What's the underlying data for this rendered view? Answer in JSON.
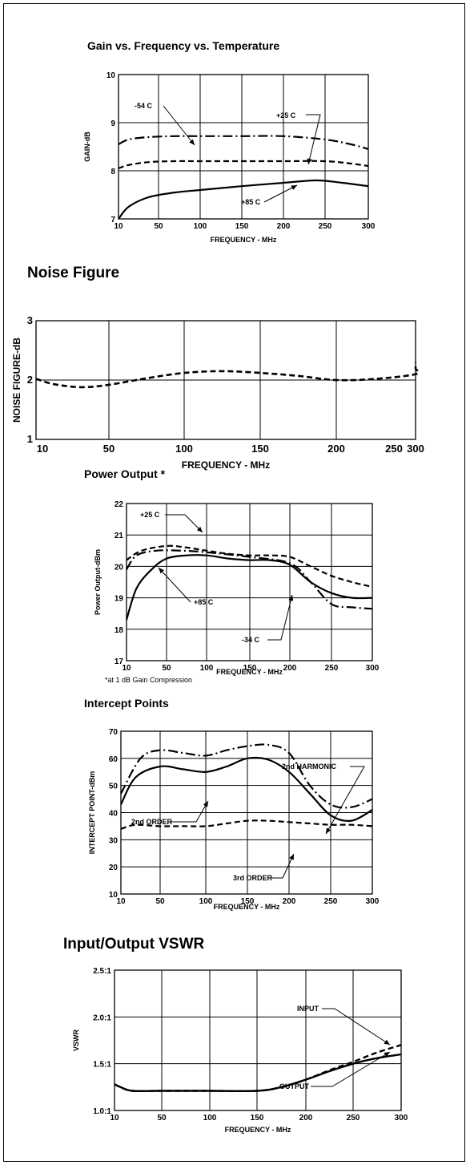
{
  "chart_data": [
    {
      "type": "line",
      "title": "Gain vs. Frequency vs. Temperature",
      "xlabel": "FREQUENCY - MHz",
      "ylabel": "GAIN-dB",
      "xticks": [
        "10",
        "50",
        "100",
        "150",
        "200",
        "250",
        "300"
      ],
      "yticks": [
        "7",
        "8",
        "9",
        "10"
      ],
      "xlim": [
        10,
        300
      ],
      "ylim": [
        7,
        10
      ],
      "grid": true,
      "series": [
        {
          "name": "-54 C",
          "style": "dash-dot",
          "x": [
            10,
            20,
            40,
            70,
            100,
            150,
            200,
            250,
            280,
            300
          ],
          "y": [
            8.55,
            8.65,
            8.7,
            8.72,
            8.72,
            8.72,
            8.72,
            8.65,
            8.55,
            8.45
          ]
        },
        {
          "name": "+25 C",
          "style": "dashed",
          "x": [
            10,
            20,
            40,
            70,
            100,
            150,
            200,
            250,
            280,
            300
          ],
          "y": [
            8.05,
            8.12,
            8.18,
            8.2,
            8.2,
            8.2,
            8.2,
            8.2,
            8.15,
            8.1
          ]
        },
        {
          "name": "+85 C",
          "style": "solid",
          "x": [
            10,
            20,
            40,
            70,
            100,
            150,
            200,
            240,
            270,
            300
          ],
          "y": [
            7.0,
            7.25,
            7.45,
            7.55,
            7.6,
            7.68,
            7.75,
            7.8,
            7.75,
            7.68
          ]
        }
      ],
      "annotations": [
        "-54 C",
        "+25 C",
        "+85 C"
      ]
    },
    {
      "type": "line",
      "title": "Noise Figure",
      "xlabel": "FREQUENCY - MHz",
      "ylabel": "NOISE FIGURE-dB",
      "xticks": [
        "10",
        "50",
        "100",
        "150",
        "200",
        "250",
        "300"
      ],
      "yticks": [
        "1",
        "2",
        "3"
      ],
      "xlim": [
        10,
        300
      ],
      "ylim": [
        1,
        3
      ],
      "grid": true,
      "series": [
        {
          "name": "",
          "style": "dashed",
          "x": [
            10,
            20,
            35,
            50,
            75,
            100,
            125,
            150,
            175,
            200,
            225,
            250,
            275,
            300
          ],
          "y": [
            2.02,
            1.93,
            1.88,
            1.92,
            2.03,
            2.12,
            2.15,
            2.12,
            2.07,
            2.0,
            2.02,
            2.1,
            2.2,
            2.3
          ]
        }
      ]
    },
    {
      "type": "line",
      "title": "Power Output *",
      "xlabel": "FREQUENCY - MHz",
      "ylabel": "Power Output-dBm",
      "xticks": [
        "10",
        "50",
        "100",
        "150",
        "200",
        "250",
        "300"
      ],
      "yticks": [
        "17",
        "18",
        "19",
        "20",
        "21",
        "22"
      ],
      "xlim": [
        10,
        300
      ],
      "ylim": [
        17,
        22
      ],
      "grid": true,
      "footnote": "*at 1 dB Gain Compression",
      "series": [
        {
          "name": "+25 C",
          "style": "dashed",
          "x": [
            10,
            25,
            50,
            75,
            100,
            125,
            150,
            175,
            200,
            225,
            250,
            275,
            300
          ],
          "y": [
            20.2,
            20.5,
            20.65,
            20.6,
            20.5,
            20.4,
            20.35,
            20.35,
            20.3,
            20.0,
            19.7,
            19.5,
            19.35
          ]
        },
        {
          "name": "+85 C",
          "style": "solid",
          "x": [
            10,
            20,
            35,
            50,
            75,
            100,
            125,
            150,
            175,
            200,
            225,
            250,
            275,
            300
          ],
          "y": [
            18.3,
            19.3,
            19.9,
            20.25,
            20.35,
            20.35,
            20.25,
            20.2,
            20.2,
            20.05,
            19.5,
            19.15,
            19.0,
            19.0
          ]
        },
        {
          "name": "-34 C",
          "style": "dash-dot",
          "x": [
            10,
            20,
            40,
            70,
            100,
            150,
            200,
            225,
            250,
            275,
            300
          ],
          "y": [
            19.9,
            20.35,
            20.5,
            20.5,
            20.45,
            20.3,
            20.1,
            19.5,
            18.8,
            18.7,
            18.65
          ]
        }
      ],
      "annotations": [
        "+25 C",
        "+85 C",
        "-34 C"
      ]
    },
    {
      "type": "line",
      "title": "Intercept Points",
      "xlabel": "FREQUENCY - MHz",
      "ylabel": "INTERCEPT POINT-dBm",
      "xticks": [
        "10",
        "50",
        "100",
        "150",
        "200",
        "250",
        "300"
      ],
      "yticks": [
        "10",
        "20",
        "30",
        "40",
        "50",
        "60",
        "70"
      ],
      "xlim": [
        10,
        300
      ],
      "ylim": [
        10,
        70
      ],
      "grid": true,
      "series": [
        {
          "name": "2nd HARMONIC",
          "style": "dash-dot",
          "x": [
            10,
            30,
            50,
            75,
            100,
            125,
            150,
            175,
            200,
            225,
            250,
            275,
            300
          ],
          "y": [
            47,
            60,
            63,
            62,
            61,
            63,
            64.5,
            65,
            62,
            50,
            43,
            42,
            45
          ]
        },
        {
          "name": "2nd ORDER",
          "style": "solid",
          "x": [
            10,
            25,
            50,
            75,
            100,
            125,
            150,
            175,
            200,
            225,
            250,
            275,
            300
          ],
          "y": [
            43,
            53,
            57,
            56,
            55,
            57,
            60,
            59.5,
            55,
            47,
            39,
            37,
            41
          ]
        },
        {
          "name": "3rd ORDER",
          "style": "dashed",
          "x": [
            10,
            25,
            50,
            75,
            100,
            125,
            150,
            175,
            200,
            225,
            250,
            275,
            300
          ],
          "y": [
            34,
            35.5,
            35,
            35,
            35,
            36,
            37,
            37,
            36.5,
            36,
            35.5,
            35.5,
            35
          ]
        }
      ],
      "annotations": [
        "2nd HARMONIC",
        "2nd ORDER",
        "3rd ORDER"
      ]
    },
    {
      "type": "line",
      "title": "Input/Output VSWR",
      "xlabel": "FREQUENCY - MHz",
      "ylabel": "VSWR",
      "xticks": [
        "10",
        "50",
        "100",
        "150",
        "200",
        "250",
        "300"
      ],
      "yticks": [
        "1.0:1",
        "1.5:1",
        "2.0:1",
        "2.5:1"
      ],
      "xlim": [
        10,
        300
      ],
      "ylim": [
        1.0,
        2.5
      ],
      "grid": true,
      "series": [
        {
          "name": "INPUT",
          "style": "dashed",
          "x": [
            10,
            15,
            25,
            50,
            100,
            150,
            175,
            200,
            225,
            250,
            275,
            300
          ],
          "y": [
            1.28,
            1.25,
            1.21,
            1.21,
            1.21,
            1.21,
            1.25,
            1.33,
            1.43,
            1.52,
            1.62,
            1.7
          ]
        },
        {
          "name": "OUTPUT",
          "style": "solid",
          "x": [
            10,
            15,
            25,
            50,
            100,
            150,
            175,
            200,
            225,
            250,
            275,
            300
          ],
          "y": [
            1.28,
            1.25,
            1.21,
            1.21,
            1.21,
            1.21,
            1.25,
            1.33,
            1.42,
            1.5,
            1.56,
            1.6
          ]
        }
      ],
      "annotations": [
        "INPUT",
        "OUTPUT"
      ]
    }
  ]
}
